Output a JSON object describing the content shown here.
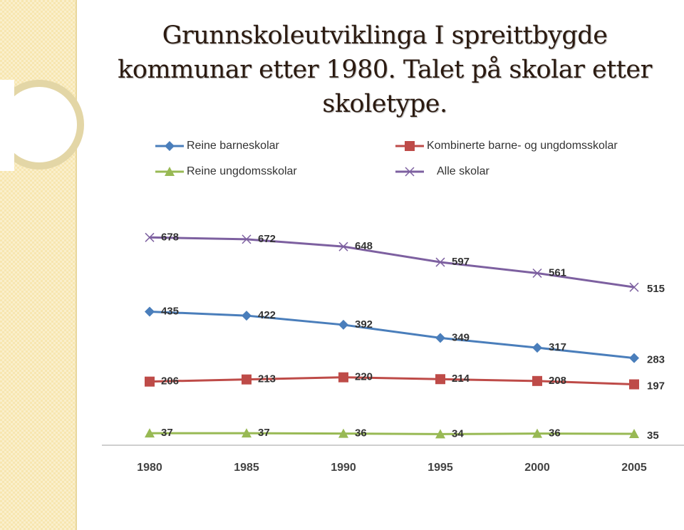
{
  "chart_data": {
    "type": "line",
    "title": "Grunnskoleutviklinga I spreittbygde kommunar etter 1980. Talet på skolar etter skoletype.",
    "categories": [
      "1980",
      "1985",
      "1990",
      "1995",
      "2000",
      "2005"
    ],
    "series": [
      {
        "name": "Reine barneskolar",
        "color": "#4a7ebb",
        "marker": "diamond",
        "values": [
          435,
          422,
          392,
          349,
          317,
          283
        ]
      },
      {
        "name": "Kombinerte barne- og ungdomsskolar",
        "color": "#be4b48",
        "marker": "square",
        "values": [
          206,
          213,
          220,
          214,
          208,
          197
        ]
      },
      {
        "name": "Reine ungdomsskolar",
        "color": "#98b954",
        "marker": "triangle",
        "values": [
          37,
          37,
          36,
          34,
          36,
          35
        ]
      },
      {
        "name": "Alle skolar",
        "color": "#7d60a0",
        "marker": "x",
        "values": [
          678,
          672,
          648,
          597,
          561,
          515
        ]
      }
    ],
    "ylim": [
      0,
      800
    ],
    "legend": "top",
    "grid": false
  }
}
